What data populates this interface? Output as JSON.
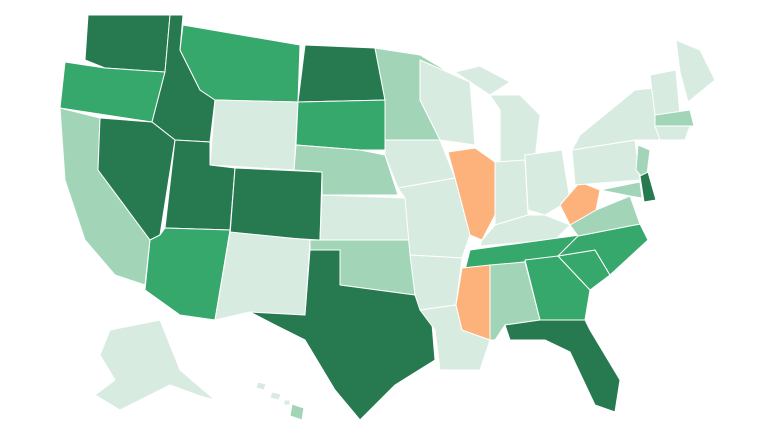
{
  "regions": [
    {
      "color": "#277a50"
    },
    {
      "color": "#36a86b"
    },
    {
      "color": "#a2d5b7"
    },
    {
      "color": "#277a50"
    },
    {
      "color": "#277a50"
    },
    {
      "color": "#36a86b"
    },
    {
      "color": "#d8ebe1"
    },
    {
      "color": "#277a50"
    },
    {
      "color": "#277a50"
    },
    {
      "color": "#36a86b"
    },
    {
      "color": "#d8ebe1"
    },
    {
      "color": "#277a50"
    },
    {
      "color": "#36a86b"
    },
    {
      "color": "#a2d5b7"
    },
    {
      "color": "#d8ebe1"
    },
    {
      "color": "#a2d5b7"
    },
    {
      "color": "#277a50"
    },
    {
      "color": "#a2d5b7"
    },
    {
      "color": "#d8ebe1"
    },
    {
      "color": "#d8ebe1"
    },
    {
      "color": "#d8ebe1"
    },
    {
      "color": "#d8ebe1"
    },
    {
      "color": "#d8ebe1"
    },
    {
      "color": "#fdb27b"
    },
    {
      "color": "#d8ebe1"
    },
    {
      "color": "#d8ebe1"
    },
    {
      "color": "#d8ebe1"
    },
    {
      "color": "#d8ebe1"
    },
    {
      "color": "#d8ebe1"
    },
    {
      "color": "#36a86b"
    },
    {
      "color": "#fdb27b"
    },
    {
      "color": "#a2d5b7"
    },
    {
      "color": "#36a86b"
    },
    {
      "color": "#277a50"
    },
    {
      "color": "#36a86b"
    },
    {
      "color": "#36a86b"
    },
    {
      "color": "#a2d5b7"
    },
    {
      "color": "#fdb27b"
    },
    {
      "color": "#d8ebe1"
    },
    {
      "color": "#d8ebe1"
    },
    {
      "color": "#a2d5b7"
    },
    {
      "color": "#a2d5b7"
    },
    {
      "color": "#277a50"
    },
    {
      "color": "#d8ebe1"
    },
    {
      "color": "#d8ebe1"
    },
    {
      "color": "#a2d5b7"
    },
    {
      "color": "#d8ebe1"
    },
    {
      "color": "#d8ebe1"
    },
    {
      "color": "#d8ebe1"
    },
    {
      "color": "#d8ebe1"
    },
    {
      "color": "#d8ebe1"
    },
    {
      "color": "#a2d5b7"
    }
  ]
}
